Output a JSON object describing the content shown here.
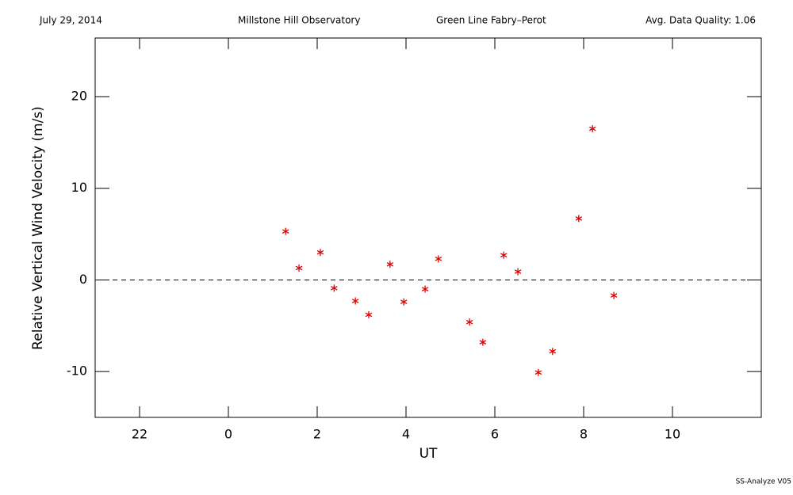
{
  "chart_data": {
    "type": "scatter",
    "header": [
      "July 29, 2014",
      "Millstone Hill Observatory",
      "Green Line Fabry–Perot",
      "Avg. Data Quality: 1.06"
    ],
    "footer": "SS-Analyze V05",
    "xlabel": "UT",
    "ylabel": "Relative Vertical Wind Velocity (m/s)",
    "color": "#e00000",
    "hline": 0,
    "xlim": [
      -3,
      12
    ],
    "xticks": [
      {
        "value": -2,
        "label": "22"
      },
      0,
      2,
      4,
      6,
      8,
      10
    ],
    "ylim": [
      -15,
      26.4
    ],
    "yticks": [
      -10,
      0,
      10,
      20
    ],
    "x": [
      1.29,
      1.59,
      2.07,
      2.38,
      2.86,
      3.16,
      3.64,
      3.95,
      4.43,
      4.73,
      5.43,
      5.73,
      6.2,
      6.52,
      6.98,
      7.3,
      7.89,
      8.2,
      8.68
    ],
    "values": [
      5.3,
      1.3,
      3.0,
      -0.9,
      -2.3,
      -3.8,
      1.7,
      -2.4,
      -1.0,
      2.3,
      -4.6,
      -6.8,
      2.7,
      0.9,
      -10.1,
      -7.8,
      6.7,
      16.5,
      -1.7
    ]
  }
}
